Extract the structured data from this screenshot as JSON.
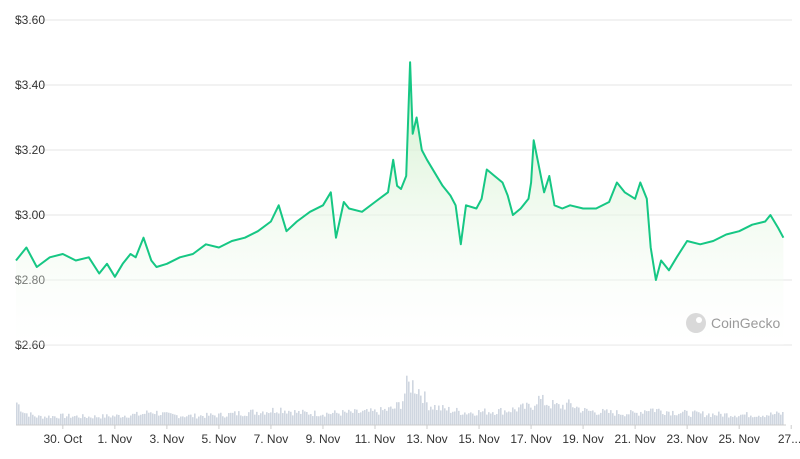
{
  "chart_data": {
    "type": "area",
    "title": "",
    "xlabel": "",
    "ylabel": "",
    "ylim": [
      2.6,
      3.6
    ],
    "y_ticks": [
      "$2.60",
      "$2.80",
      "$3.00",
      "$3.20",
      "$3.40",
      "$3.60"
    ],
    "x_ticks": [
      "30. Oct",
      "1. Nov",
      "3. Nov",
      "5. Nov",
      "7. Nov",
      "9. Nov",
      "11. Nov",
      "13. Nov",
      "15. Nov",
      "17. Nov",
      "19. Nov",
      "21. Nov",
      "23. Nov",
      "25. Nov",
      "27...."
    ],
    "x_range_days": [
      -1.8,
      27.8
    ],
    "grid": true,
    "line_color": "#16c784",
    "fill_color": "#e3f6e1",
    "volume_color": "#cfd6e0",
    "series": [
      {
        "name": "",
        "points": [
          [
            -1.8,
            2.86
          ],
          [
            -1.4,
            2.9
          ],
          [
            -1.0,
            2.84
          ],
          [
            -0.5,
            2.87
          ],
          [
            0.0,
            2.88
          ],
          [
            0.5,
            2.86
          ],
          [
            1.0,
            2.87
          ],
          [
            1.4,
            2.82
          ],
          [
            1.7,
            2.85
          ],
          [
            2.0,
            2.81
          ],
          [
            2.3,
            2.85
          ],
          [
            2.6,
            2.88
          ],
          [
            2.8,
            2.87
          ],
          [
            3.1,
            2.93
          ],
          [
            3.4,
            2.86
          ],
          [
            3.6,
            2.84
          ],
          [
            4.0,
            2.85
          ],
          [
            4.5,
            2.87
          ],
          [
            5.0,
            2.88
          ],
          [
            5.5,
            2.91
          ],
          [
            6.0,
            2.9
          ],
          [
            6.5,
            2.92
          ],
          [
            7.0,
            2.93
          ],
          [
            7.5,
            2.95
          ],
          [
            8.0,
            2.98
          ],
          [
            8.3,
            3.03
          ],
          [
            8.6,
            2.95
          ],
          [
            9.0,
            2.98
          ],
          [
            9.5,
            3.01
          ],
          [
            10.0,
            3.03
          ],
          [
            10.3,
            3.07
          ],
          [
            10.5,
            2.93
          ],
          [
            10.8,
            3.04
          ],
          [
            11.0,
            3.02
          ],
          [
            11.5,
            3.01
          ],
          [
            12.0,
            3.04
          ],
          [
            12.5,
            3.07
          ],
          [
            12.7,
            3.17
          ],
          [
            12.85,
            3.09
          ],
          [
            13.0,
            3.08
          ],
          [
            13.2,
            3.12
          ],
          [
            13.35,
            3.47
          ],
          [
            13.45,
            3.25
          ],
          [
            13.6,
            3.3
          ],
          [
            13.8,
            3.2
          ],
          [
            14.0,
            3.17
          ],
          [
            14.3,
            3.13
          ],
          [
            14.6,
            3.09
          ],
          [
            14.9,
            3.06
          ],
          [
            15.1,
            3.03
          ],
          [
            15.3,
            2.91
          ],
          [
            15.5,
            3.03
          ],
          [
            15.9,
            3.02
          ],
          [
            16.1,
            3.05
          ],
          [
            16.3,
            3.14
          ],
          [
            16.6,
            3.12
          ],
          [
            16.9,
            3.1
          ],
          [
            17.1,
            3.06
          ],
          [
            17.3,
            3.0
          ],
          [
            17.6,
            3.02
          ],
          [
            17.9,
            3.05
          ],
          [
            18.0,
            3.1
          ],
          [
            18.1,
            3.23
          ],
          [
            18.3,
            3.15
          ],
          [
            18.5,
            3.07
          ],
          [
            18.7,
            3.12
          ],
          [
            18.9,
            3.03
          ],
          [
            19.2,
            3.02
          ],
          [
            19.5,
            3.03
          ],
          [
            20.0,
            3.02
          ],
          [
            20.5,
            3.02
          ],
          [
            21.0,
            3.04
          ],
          [
            21.3,
            3.1
          ],
          [
            21.6,
            3.07
          ],
          [
            22.0,
            3.05
          ],
          [
            22.2,
            3.1
          ],
          [
            22.45,
            3.05
          ],
          [
            22.6,
            2.9
          ],
          [
            22.8,
            2.8
          ],
          [
            23.0,
            2.86
          ],
          [
            23.3,
            2.83
          ],
          [
            23.6,
            2.87
          ],
          [
            24.0,
            2.92
          ],
          [
            24.5,
            2.91
          ],
          [
            25.0,
            2.92
          ],
          [
            25.5,
            2.94
          ],
          [
            26.0,
            2.95
          ],
          [
            26.5,
            2.97
          ],
          [
            27.0,
            2.98
          ],
          [
            27.2,
            3.0
          ],
          [
            27.5,
            2.96
          ],
          [
            27.7,
            2.93
          ]
        ]
      }
    ],
    "volume": [
      [
        -1.8,
        0.55
      ],
      [
        -1.5,
        0.3
      ],
      [
        -1.0,
        0.2
      ],
      [
        0.0,
        0.22
      ],
      [
        1.0,
        0.2
      ],
      [
        2.0,
        0.22
      ],
      [
        3.0,
        0.26
      ],
      [
        3.4,
        0.33
      ],
      [
        4.0,
        0.24
      ],
      [
        5.0,
        0.22
      ],
      [
        6.0,
        0.24
      ],
      [
        7.0,
        0.3
      ],
      [
        8.0,
        0.35
      ],
      [
        8.3,
        0.4
      ],
      [
        9.0,
        0.3
      ],
      [
        10.0,
        0.28
      ],
      [
        11.0,
        0.3
      ],
      [
        12.0,
        0.32
      ],
      [
        12.7,
        0.4
      ],
      [
        13.0,
        0.55
      ],
      [
        13.2,
        0.95
      ],
      [
        13.4,
        1.0
      ],
      [
        13.6,
        0.9
      ],
      [
        13.8,
        0.75
      ],
      [
        14.0,
        0.5
      ],
      [
        14.5,
        0.4
      ],
      [
        15.0,
        0.35
      ],
      [
        15.5,
        0.3
      ],
      [
        16.0,
        0.32
      ],
      [
        17.0,
        0.35
      ],
      [
        18.0,
        0.45
      ],
      [
        18.2,
        0.65
      ],
      [
        18.5,
        0.55
      ],
      [
        19.0,
        0.45
      ],
      [
        19.5,
        0.5
      ],
      [
        20.0,
        0.35
      ],
      [
        21.0,
        0.3
      ],
      [
        22.0,
        0.28
      ],
      [
        22.5,
        0.4
      ],
      [
        23.0,
        0.35
      ],
      [
        24.0,
        0.28
      ],
      [
        25.0,
        0.26
      ],
      [
        26.0,
        0.25
      ],
      [
        27.0,
        0.25
      ],
      [
        27.7,
        0.28
      ]
    ]
  },
  "watermark": {
    "text": "CoinGecko"
  }
}
